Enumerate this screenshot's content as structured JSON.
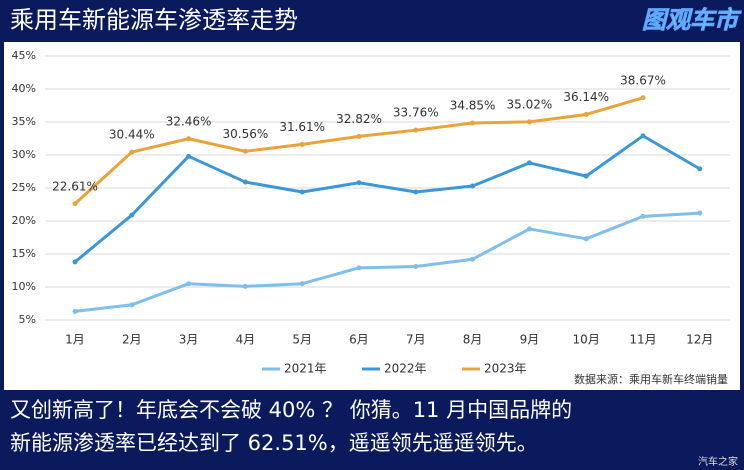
{
  "header": {
    "title": "乘用车新能源车渗透率走势",
    "logo": "图观车市"
  },
  "chart_data": {
    "type": "line",
    "categories": [
      "1月",
      "2月",
      "3月",
      "4月",
      "5月",
      "6月",
      "7月",
      "8月",
      "9月",
      "10月",
      "11月",
      "12月"
    ],
    "series": [
      {
        "name": "2021年",
        "color": "#7fbfea",
        "values": [
          6.3,
          7.3,
          10.5,
          10.1,
          10.5,
          12.9,
          13.1,
          14.2,
          18.8,
          17.3,
          20.7,
          21.2
        ]
      },
      {
        "name": "2022年",
        "color": "#3c97d9",
        "values": [
          13.8,
          20.9,
          29.8,
          25.9,
          24.4,
          25.8,
          24.4,
          25.3,
          28.8,
          26.8,
          32.9,
          27.9
        ]
      },
      {
        "name": "2023年",
        "color": "#e8a43a",
        "values": [
          22.61,
          30.44,
          32.46,
          30.56,
          31.61,
          32.82,
          33.76,
          34.85,
          35.02,
          36.14,
          38.67,
          null
        ],
        "value_labels": [
          "22.61%",
          "30.44%",
          "32.46%",
          "30.56%",
          "31.61%",
          "32.82%",
          "33.76%",
          "34.85%",
          "35.02%",
          "36.14%",
          "38.67%",
          null
        ]
      }
    ],
    "ylim": [
      5,
      45
    ],
    "yticks": [
      {
        "value": 5,
        "label": "5%"
      },
      {
        "value": 10,
        "label": "10%"
      },
      {
        "value": 15,
        "label": "15%"
      },
      {
        "value": 20,
        "label": "20%"
      },
      {
        "value": 25,
        "label": "25%"
      },
      {
        "value": 30,
        "label": "30%"
      },
      {
        "value": 35,
        "label": "35%"
      },
      {
        "value": 40,
        "label": "40%"
      },
      {
        "value": 45,
        "label": "45%"
      }
    ],
    "grid": true,
    "legend": "bottom",
    "source": "数据来源：乘用车新车终端销量"
  },
  "caption": [
    "又创新高了！年底会不会破 40% ？ 你猜。11 月中国品牌的",
    "新能源渗透率已经达到了 62.51%，遥遥领先遥遥领先。"
  ],
  "watermark": "汽车之家"
}
